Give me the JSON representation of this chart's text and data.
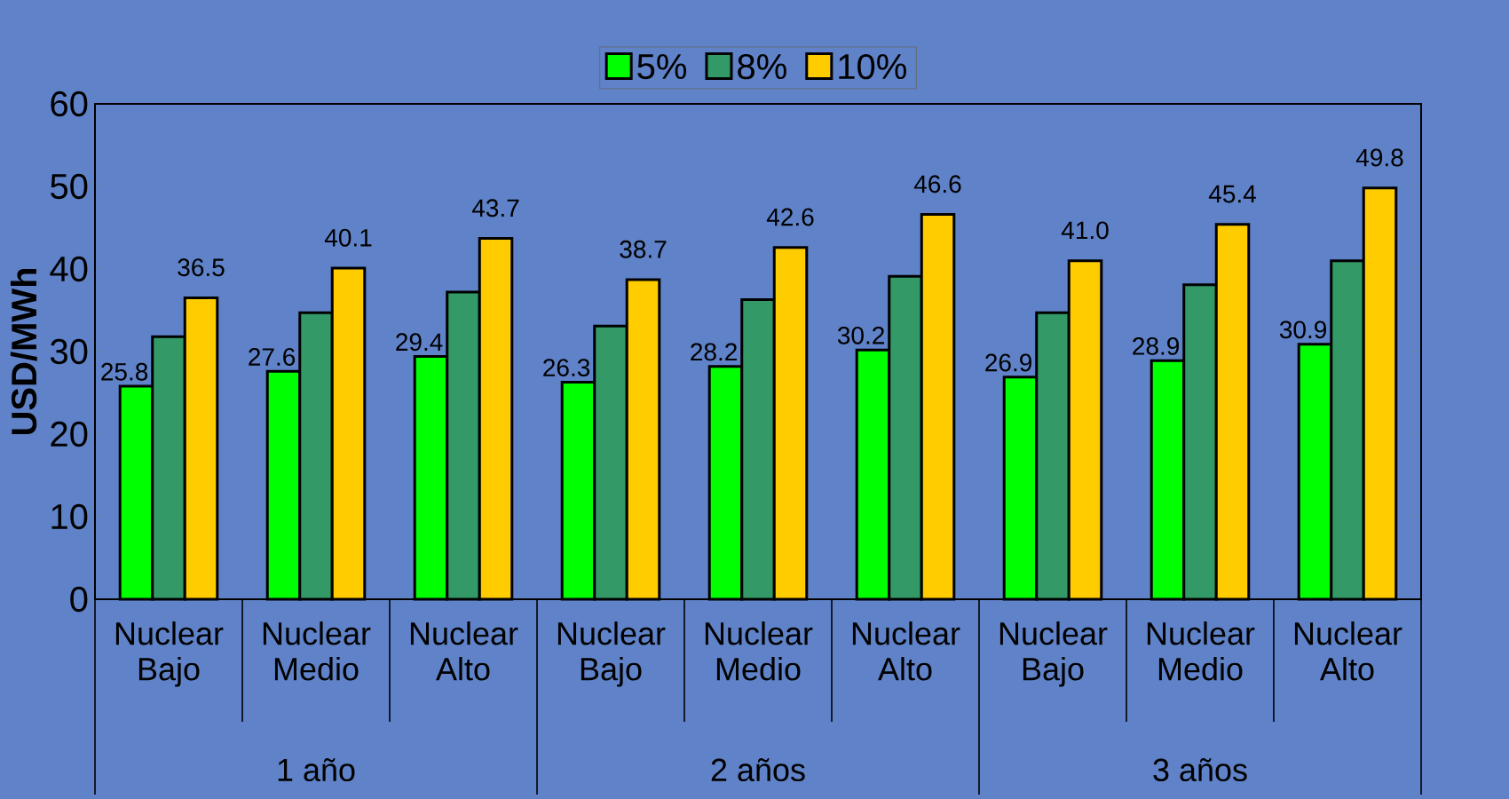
{
  "chart_data": {
    "type": "bar",
    "ylabel": "USD/MWh",
    "categories": [
      "Nuclear Bajo",
      "Nuclear Medio",
      "Nuclear Alto",
      "Nuclear Bajo",
      "Nuclear Medio",
      "Nuclear Alto",
      "Nuclear Bajo",
      "Nuclear Medio",
      "Nuclear Alto"
    ],
    "series": [
      {
        "name": "5%",
        "color": "#00ff00",
        "values": [
          25.8,
          27.6,
          29.4,
          26.3,
          28.2,
          30.2,
          26.9,
          28.9,
          30.9
        ],
        "value_labels": [
          "25.8",
          "27.6",
          "29.4",
          "26.3",
          "28.2",
          "30.2",
          "26.9",
          "28.9",
          "30.9"
        ]
      },
      {
        "name": "8%",
        "color": "#339966",
        "values": [
          31.8,
          34.7,
          37.2,
          33.1,
          36.3,
          39.1,
          34.7,
          38.1,
          41.0
        ]
      },
      {
        "name": "10%",
        "color": "#ffcc00",
        "values": [
          36.5,
          40.1,
          43.7,
          38.7,
          42.6,
          46.6,
          41.0,
          45.4,
          49.8
        ],
        "value_labels": [
          "36.5",
          "40.1",
          "43.7",
          "38.7",
          "42.6",
          "46.6",
          "41.0",
          "45.4",
          "49.8"
        ]
      }
    ],
    "annotations": [
      "1 año",
      "2 años",
      "3 años"
    ],
    "ylim": [
      0,
      60
    ],
    "yticks": [
      0,
      10,
      20,
      30,
      40,
      50,
      60
    ],
    "legend": "top",
    "grid": false
  }
}
